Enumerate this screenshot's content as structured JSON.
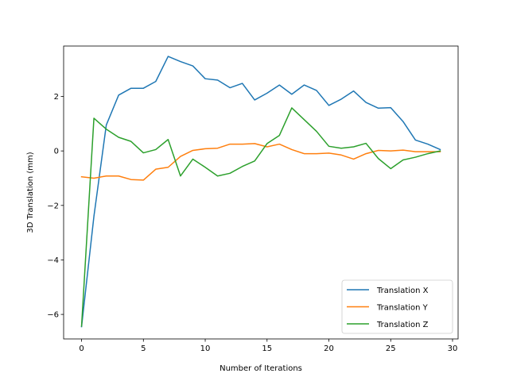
{
  "chart_data": {
    "type": "line",
    "xlabel": "Number of Iterations",
    "ylabel": "3D Translation (mm)",
    "xlim": [
      -1.45,
      30.45
    ],
    "ylim": [
      -6.9,
      3.85
    ],
    "xticks": [
      0,
      5,
      10,
      15,
      20,
      25,
      30
    ],
    "yticks": [
      -6,
      -4,
      -2,
      0,
      2
    ],
    "ytick_labels": [
      "−6",
      "−4",
      "−2",
      "0",
      "2"
    ],
    "grid": false,
    "legend_position": "lower right",
    "x": [
      0,
      1,
      2,
      3,
      4,
      5,
      6,
      7,
      8,
      9,
      10,
      11,
      12,
      13,
      14,
      15,
      16,
      17,
      18,
      19,
      20,
      21,
      22,
      23,
      24,
      25,
      26,
      27,
      28,
      29
    ],
    "series": [
      {
        "name": "Translation X",
        "color": "#1f77b4",
        "values": [
          -6.45,
          -2.4,
          0.95,
          2.05,
          2.3,
          2.3,
          2.55,
          3.47,
          3.28,
          3.12,
          2.65,
          2.6,
          2.32,
          2.48,
          1.87,
          2.12,
          2.42,
          2.08,
          2.42,
          2.22,
          1.67,
          1.9,
          2.2,
          1.78,
          1.57,
          1.59,
          1.08,
          0.4,
          0.25,
          0.05
        ]
      },
      {
        "name": "Translation Y",
        "color": "#ff7f0e",
        "values": [
          -0.95,
          -1.0,
          -0.92,
          -0.92,
          -1.05,
          -1.07,
          -0.67,
          -0.6,
          -0.2,
          0.02,
          0.08,
          0.1,
          0.25,
          0.25,
          0.27,
          0.15,
          0.25,
          0.05,
          -0.1,
          -0.1,
          -0.08,
          -0.15,
          -0.3,
          -0.1,
          0.02,
          0.0,
          0.03,
          -0.03,
          -0.03,
          -0.03
        ]
      },
      {
        "name": "Translation Z",
        "color": "#2ca02c",
        "values": [
          -6.43,
          1.2,
          0.8,
          0.5,
          0.35,
          -0.07,
          0.05,
          0.42,
          -0.92,
          -0.3,
          -0.6,
          -0.92,
          -0.82,
          -0.57,
          -0.37,
          0.27,
          0.57,
          1.58,
          1.15,
          0.72,
          0.17,
          0.1,
          0.15,
          0.28,
          -0.28,
          -0.65,
          -0.33,
          -0.23,
          -0.1,
          0.0
        ]
      }
    ]
  }
}
